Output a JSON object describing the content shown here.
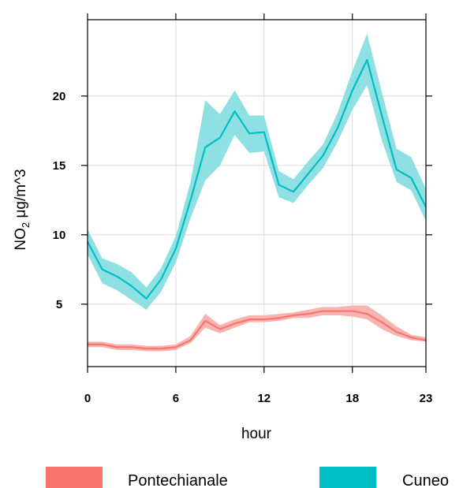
{
  "chart_data": {
    "type": "line",
    "xlabel": "hour",
    "ylabel_main": "NO",
    "ylabel_sub": "2",
    "ylabel_rest": " μg/m^3",
    "x_range": [
      0,
      23
    ],
    "y_range": [
      0.5,
      25.5
    ],
    "x_ticks": [
      0,
      6,
      12,
      18,
      23
    ],
    "y_ticks": [
      5,
      10,
      15,
      20
    ],
    "grid": true,
    "legend_position": "bottom",
    "series": [
      {
        "name": "Pontechianale",
        "color": "#F8766D",
        "band_color": "#F8B4B0",
        "x": [
          0,
          1,
          2,
          3,
          4,
          5,
          6,
          7,
          8,
          9,
          10,
          11,
          12,
          13,
          14,
          15,
          16,
          17,
          18,
          19,
          20,
          21,
          22,
          23
        ],
        "y": [
          2.1,
          2.1,
          1.9,
          1.9,
          1.8,
          1.8,
          1.9,
          2.4,
          3.8,
          3.2,
          3.6,
          3.9,
          3.9,
          4.0,
          4.2,
          4.3,
          4.5,
          4.5,
          4.5,
          4.3,
          3.7,
          3.0,
          2.6,
          2.4
        ],
        "lower": [
          1.9,
          1.9,
          1.7,
          1.7,
          1.6,
          1.6,
          1.7,
          2.2,
          3.3,
          2.9,
          3.3,
          3.7,
          3.7,
          3.8,
          4.0,
          4.0,
          4.2,
          4.2,
          4.1,
          3.9,
          3.2,
          2.7,
          2.4,
          2.3
        ],
        "upper": [
          2.3,
          2.3,
          2.1,
          2.1,
          2.0,
          2.0,
          2.1,
          2.7,
          4.3,
          3.5,
          3.9,
          4.2,
          4.2,
          4.3,
          4.4,
          4.6,
          4.8,
          4.8,
          4.9,
          4.9,
          4.2,
          3.4,
          2.8,
          2.6
        ]
      },
      {
        "name": "Cuneo",
        "color": "#00BFC4",
        "band_color": "#8FE0E2",
        "x": [
          0,
          1,
          2,
          3,
          4,
          5,
          6,
          7,
          8,
          9,
          10,
          11,
          12,
          13,
          14,
          15,
          16,
          17,
          18,
          19,
          20,
          21,
          22,
          23
        ],
        "y": [
          9.5,
          7.5,
          7.0,
          6.3,
          5.4,
          6.8,
          9.0,
          12.5,
          16.3,
          17.0,
          18.9,
          17.3,
          17.4,
          13.6,
          13.1,
          14.4,
          15.7,
          17.7,
          20.4,
          22.6,
          18.6,
          14.7,
          14.1,
          12.0
        ],
        "lower": [
          8.6,
          6.5,
          6.0,
          5.3,
          4.6,
          5.9,
          8.0,
          11.2,
          13.9,
          15.0,
          17.2,
          15.9,
          16.0,
          12.7,
          12.3,
          13.6,
          14.8,
          16.7,
          19.0,
          20.8,
          16.8,
          13.8,
          13.2,
          11.0
        ],
        "upper": [
          10.4,
          8.3,
          7.9,
          7.3,
          6.2,
          7.6,
          9.9,
          13.8,
          19.7,
          18.7,
          20.4,
          18.6,
          18.6,
          14.6,
          14.0,
          15.3,
          16.5,
          18.8,
          21.8,
          24.5,
          20.3,
          16.2,
          15.6,
          13.3
        ]
      }
    ]
  }
}
